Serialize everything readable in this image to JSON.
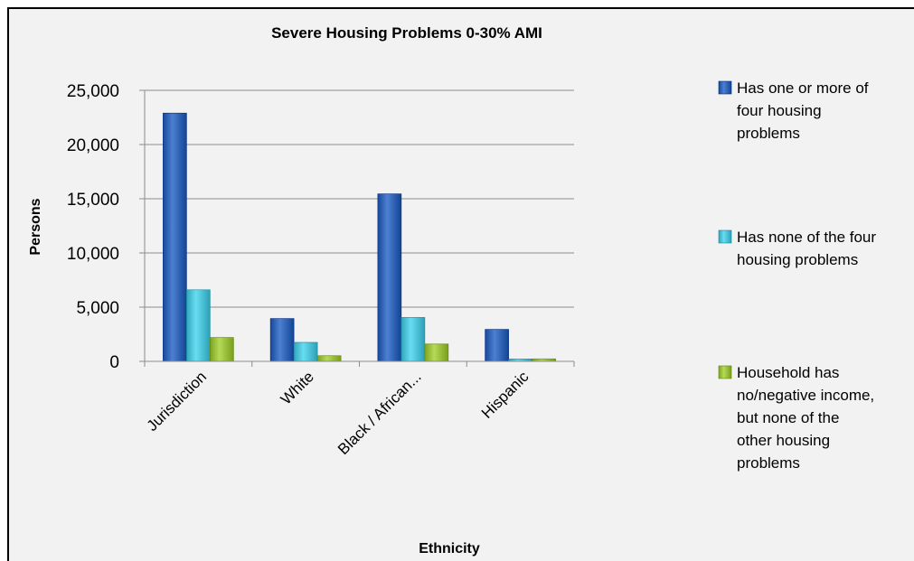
{
  "chart_data": {
    "type": "bar",
    "title": "Severe Housing Problems 0-30% AMI",
    "xlabel": "Ethnicity",
    "ylabel": "Persons",
    "categories": [
      "Jurisdiction",
      "White",
      "Black / African...",
      "Hispanic"
    ],
    "series": [
      {
        "name": "Has one or more of four housing problems",
        "values": [
          22900,
          3950,
          15450,
          2950
        ],
        "color": "#3467b8"
      },
      {
        "name": "Has none of the four housing problems",
        "values": [
          6600,
          1750,
          4050,
          220
        ],
        "color": "#4fc4d9"
      },
      {
        "name": "Household has no/negative income, but none of the other housing problems",
        "values": [
          2200,
          520,
          1600,
          230
        ],
        "color": "#9bc13f"
      }
    ],
    "ylim": [
      0,
      25000
    ],
    "yticks": [
      0,
      5000,
      10000,
      15000,
      20000,
      25000
    ],
    "ytick_labels": [
      "0",
      "5,000",
      "10,000",
      "15,000",
      "20,000",
      "25,000"
    ],
    "grid": true,
    "legend_position": "right"
  },
  "legend": {
    "items": [
      {
        "lines": [
          "Has one or more of",
          "four housing",
          "problems"
        ]
      },
      {
        "lines": [
          "Has none of the four",
          "housing problems"
        ]
      },
      {
        "lines": [
          "Household has",
          "no/negative income,",
          "but none of the",
          "other housing",
          "problems"
        ]
      }
    ]
  }
}
